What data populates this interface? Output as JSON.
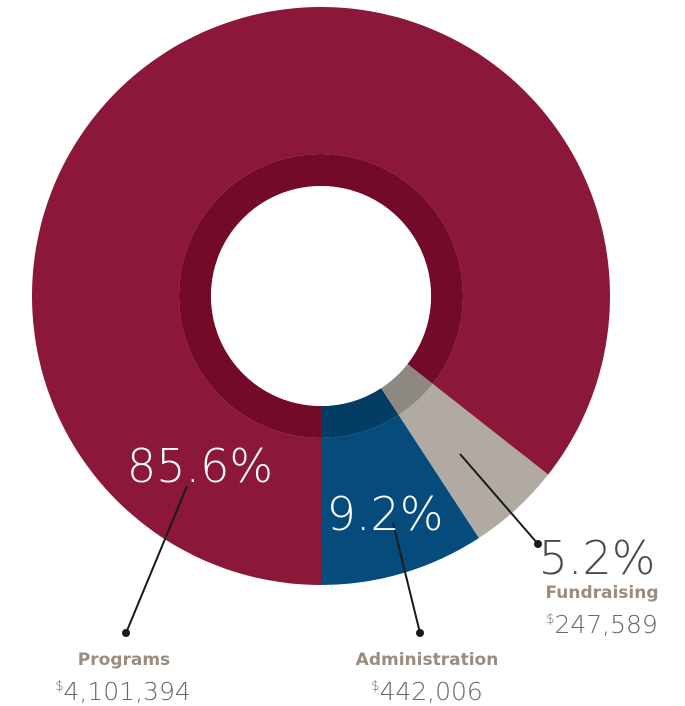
{
  "chart_data": {
    "type": "pie",
    "donut": true,
    "slices": [
      {
        "label": "Programs",
        "percent": 85.6,
        "percent_label": "85.6%",
        "amount": "4,101,394",
        "color": "#8b1838",
        "inner_color": "#730a28"
      },
      {
        "label": "Administration",
        "percent": 9.2,
        "percent_label": "9.2%",
        "amount": "442,006",
        "color": "#054c7c",
        "inner_color": "#043d63"
      },
      {
        "label": "Fundraising",
        "percent": 5.2,
        "percent_label": "5.2%",
        "amount": "247,589",
        "color": "#b1aaa3",
        "inner_color": "#8e8882"
      }
    ],
    "currency_symbol": "$"
  }
}
